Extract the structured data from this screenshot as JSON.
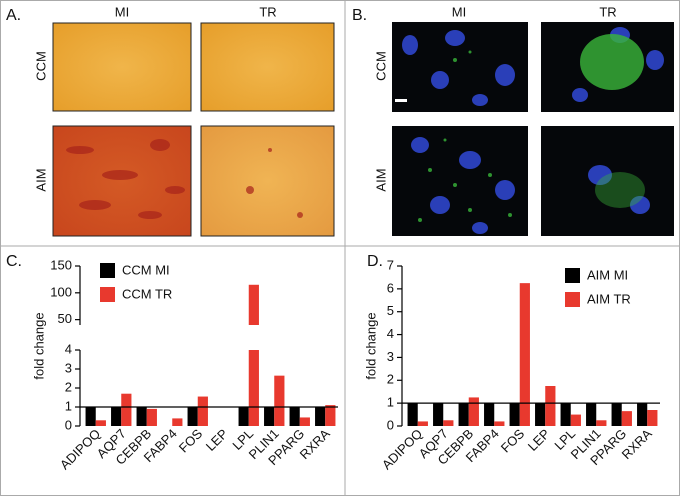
{
  "panels": [
    {
      "label": "A.",
      "columns": [
        "MI",
        "TR"
      ],
      "rows": [
        "CCM",
        "AIM"
      ]
    },
    {
      "label": "B.",
      "columns": [
        "MI",
        "TR"
      ],
      "rows": [
        "CCM",
        "AIM"
      ]
    }
  ],
  "chart_data": [
    {
      "type": "bar",
      "panel_label": "C.",
      "ylabel": "fold change",
      "categories": [
        "ADIPOQ",
        "AQP7",
        "CEBPB",
        "FABP4",
        "FOS",
        "LEP",
        "LPL",
        "PLIN1",
        "PPARG",
        "RXRA"
      ],
      "series": [
        {
          "name": "CCM MI",
          "color": "#000000",
          "values": [
            1,
            1,
            1,
            null,
            1,
            null,
            1,
            1,
            1,
            1
          ]
        },
        {
          "name": "CCM TR",
          "color": "#e8392e",
          "values": [
            0.3,
            1.7,
            0.9,
            0.4,
            1.55,
            null,
            115,
            2.65,
            0.45,
            1.1
          ]
        }
      ],
      "ylim": [
        0,
        150
      ],
      "y_break": [
        4,
        40
      ],
      "yticks": [
        0,
        1,
        2,
        3,
        4,
        50,
        100,
        150
      ],
      "reference_line": 1
    },
    {
      "type": "bar",
      "panel_label": "D.",
      "ylabel": "fold change",
      "categories": [
        "ADIPOQ",
        "AQP7",
        "CEBPB",
        "FABP4",
        "FOS",
        "LEP",
        "LPL",
        "PLIN1",
        "PPARG",
        "RXRA"
      ],
      "series": [
        {
          "name": "AIM MI",
          "color": "#000000",
          "values": [
            1,
            1,
            1,
            1,
            1,
            1,
            1,
            1,
            1,
            1
          ]
        },
        {
          "name": "AIM TR",
          "color": "#e8392e",
          "values": [
            0.2,
            0.25,
            1.25,
            0.2,
            6.25,
            1.75,
            0.5,
            0.25,
            0.65,
            0.7
          ]
        }
      ],
      "ylim": [
        0,
        7
      ],
      "yticks": [
        0,
        1,
        2,
        3,
        4,
        5,
        6,
        7
      ],
      "reference_line": 1
    }
  ]
}
